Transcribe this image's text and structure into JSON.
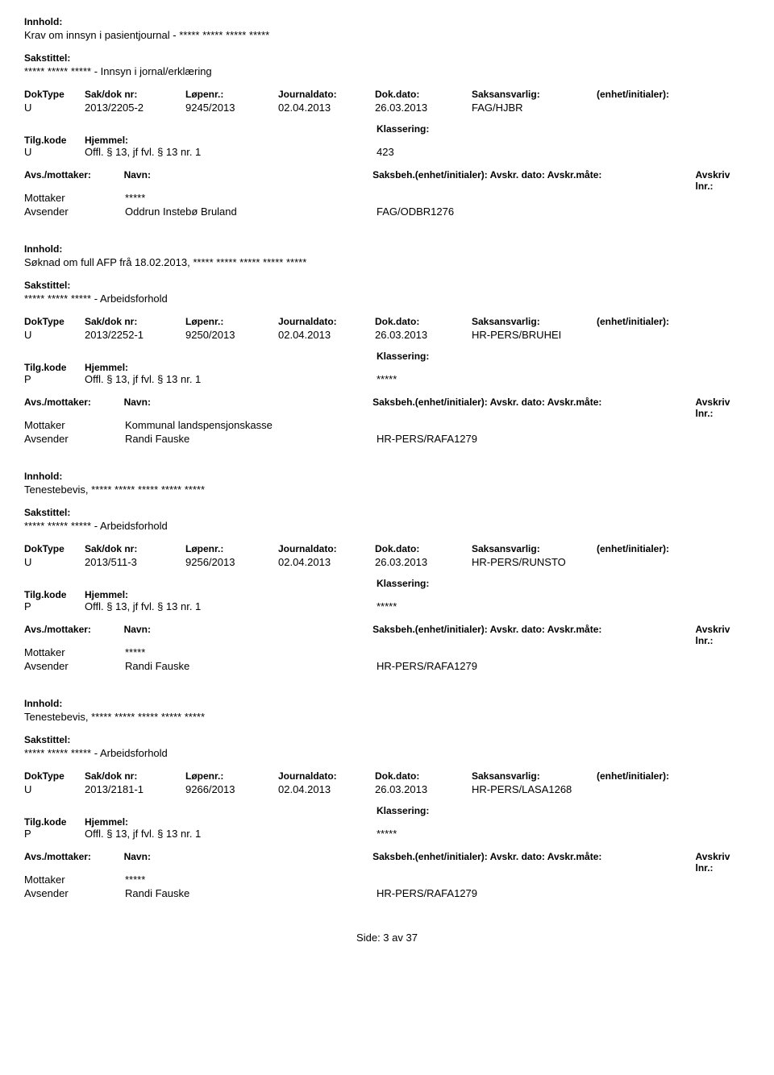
{
  "labels": {
    "innhold": "Innhold:",
    "sakstittel": "Sakstittel:",
    "doktype": "DokType",
    "sakdok": "Sak/dok nr:",
    "lopenr": "Løpenr.:",
    "journaldato": "Journaldato:",
    "dokdato": "Dok.dato:",
    "saksansvarlig": "Saksansvarlig:",
    "enhet": "(enhet/initialer):",
    "tilgkode": "Tilg.kode",
    "hjemmel": "Hjemmel:",
    "klassering": "Klassering:",
    "avsmottaker": "Avs./mottaker:",
    "navn": "Navn:",
    "saksbeh_long": "Saksbeh.(enhet/initialer): Avskr. dato:  Avskr.måte:",
    "avskr_lnr": "Avskriv lnr.:"
  },
  "records": [
    {
      "innhold": "Krav om innsyn i pasientjournal - ***** ***** ***** *****",
      "sakstittel": "***** ***** ***** - Innsyn i jornal/erklæring",
      "doktype": "U",
      "sakdok": "2013/2205-2",
      "lopenr": "9245/2013",
      "journaldato": "02.04.2013",
      "dokdato": "26.03.2013",
      "saksansvarlig": "FAG/HJBR",
      "enhet": "",
      "tilgkode": "U",
      "hjemmel": "Offl. § 13, jf fvl. § 13 nr. 1",
      "klassering": "423",
      "parties": [
        {
          "role": "Mottaker",
          "name": "*****",
          "ref": ""
        },
        {
          "role": "Avsender",
          "name": "Oddrun Instebø Bruland",
          "ref": "FAG/ODBR1276"
        }
      ]
    },
    {
      "innhold": "Søknad om full AFP frå 18.02.2013, ***** ***** ***** ***** *****",
      "sakstittel": "***** ***** ***** - Arbeidsforhold",
      "doktype": "U",
      "sakdok": "2013/2252-1",
      "lopenr": "9250/2013",
      "journaldato": "02.04.2013",
      "dokdato": "26.03.2013",
      "saksansvarlig": "HR-PERS/BRUHEI",
      "enhet": "",
      "tilgkode": "P",
      "hjemmel": "Offl. § 13, jf fvl. § 13 nr. 1",
      "klassering": "*****",
      "parties": [
        {
          "role": "Mottaker",
          "name": "Kommunal landspensjonskasse",
          "ref": ""
        },
        {
          "role": "Avsender",
          "name": "Randi Fauske",
          "ref": "HR-PERS/RAFA1279"
        }
      ]
    },
    {
      "innhold": "Tenestebevis, ***** ***** ***** ***** *****",
      "sakstittel": "***** ***** ***** - Arbeidsforhold",
      "doktype": "U",
      "sakdok": "2013/511-3",
      "lopenr": "9256/2013",
      "journaldato": "02.04.2013",
      "dokdato": "26.03.2013",
      "saksansvarlig": "HR-PERS/RUNSTO",
      "enhet": "",
      "tilgkode": "P",
      "hjemmel": "Offl. § 13, jf fvl. § 13 nr. 1",
      "klassering": "*****",
      "parties": [
        {
          "role": "Mottaker",
          "name": "*****",
          "ref": ""
        },
        {
          "role": "Avsender",
          "name": "Randi Fauske",
          "ref": "HR-PERS/RAFA1279"
        }
      ]
    },
    {
      "innhold": "Tenestebevis, ***** ***** ***** ***** *****",
      "sakstittel": "***** ***** ***** - Arbeidsforhold",
      "doktype": "U",
      "sakdok": "2013/2181-1",
      "lopenr": "9266/2013",
      "journaldato": "02.04.2013",
      "dokdato": "26.03.2013",
      "saksansvarlig": "HR-PERS/LASA1268",
      "enhet": "",
      "tilgkode": "P",
      "hjemmel": "Offl. § 13, jf fvl. § 13 nr. 1",
      "klassering": "*****",
      "parties": [
        {
          "role": "Mottaker",
          "name": "*****",
          "ref": ""
        },
        {
          "role": "Avsender",
          "name": "Randi Fauske",
          "ref": "HR-PERS/RAFA1279"
        }
      ]
    }
  ],
  "footer": "Side: 3 av 37"
}
